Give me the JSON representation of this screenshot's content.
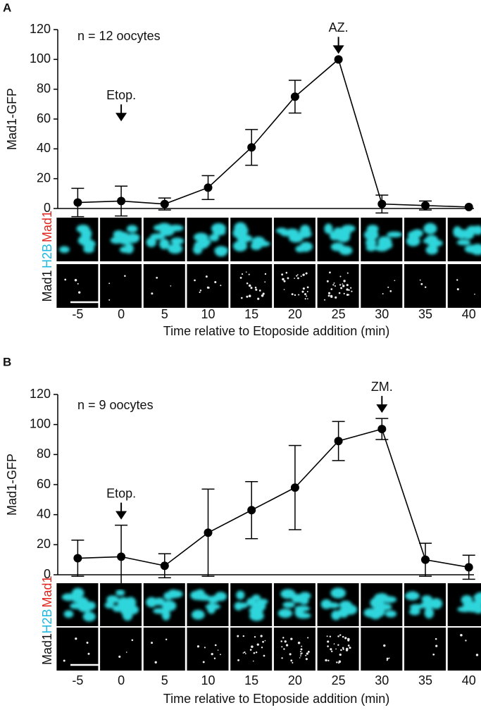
{
  "chart_data": [
    {
      "type": "line",
      "panel_label": "A",
      "annotation_text": "n = 12 oocytes",
      "ylabel": "Mad1-GFP",
      "xlabel": "Time relative to Etoposide addition (min)",
      "x": [
        -5,
        0,
        5,
        10,
        15,
        20,
        25,
        30,
        35,
        40
      ],
      "xticks": [
        -5,
        0,
        5,
        10,
        15,
        20,
        25,
        30,
        35,
        40
      ],
      "xlim": [
        -7.3,
        41.4
      ],
      "ylim": [
        0,
        120
      ],
      "yticks": [
        0,
        20,
        40,
        60,
        80,
        100,
        120
      ],
      "series": [
        {
          "color": "#000000",
          "values": [
            4,
            5,
            3,
            14,
            41,
            75,
            100,
            3,
            2,
            1
          ],
          "errors": [
            9.5,
            10,
            4,
            8,
            12,
            11,
            0,
            6,
            3,
            0
          ]
        }
      ],
      "arrows": [
        {
          "text": "Etop.",
          "x": 0
        },
        {
          "text": "AZ.",
          "x": 25
        }
      ],
      "image_labels": {
        "top": [
          "H2B",
          "Mad1"
        ],
        "bottom": "Mad1"
      }
    },
    {
      "type": "line",
      "panel_label": "B",
      "annotation_text": "n = 9 oocytes",
      "ylabel": "Mad1-GFP",
      "xlabel": "Time relative to Etoposide addition (min)",
      "x": [
        -5,
        0,
        5,
        10,
        15,
        20,
        25,
        30,
        35,
        40
      ],
      "xticks": [
        -5,
        0,
        5,
        10,
        15,
        20,
        25,
        30,
        35,
        40
      ],
      "xlim": [
        -7.3,
        41.4
      ],
      "ylim": [
        0,
        120
      ],
      "yticks": [
        0,
        20,
        40,
        60,
        80,
        100,
        120
      ],
      "series": [
        {
          "color": "#000000",
          "values": [
            11,
            12,
            6,
            28,
            43,
            58,
            89,
            97,
            10,
            5
          ],
          "errors": [
            12,
            21,
            8,
            29,
            19,
            28,
            13,
            7,
            11,
            8
          ]
        }
      ],
      "arrows": [
        {
          "text": "Etop.",
          "x": 0
        },
        {
          "text": "ZM.",
          "x": 30
        }
      ],
      "image_labels": {
        "top": [
          "H2B",
          "Mad1"
        ],
        "bottom": "Mad1"
      }
    }
  ]
}
